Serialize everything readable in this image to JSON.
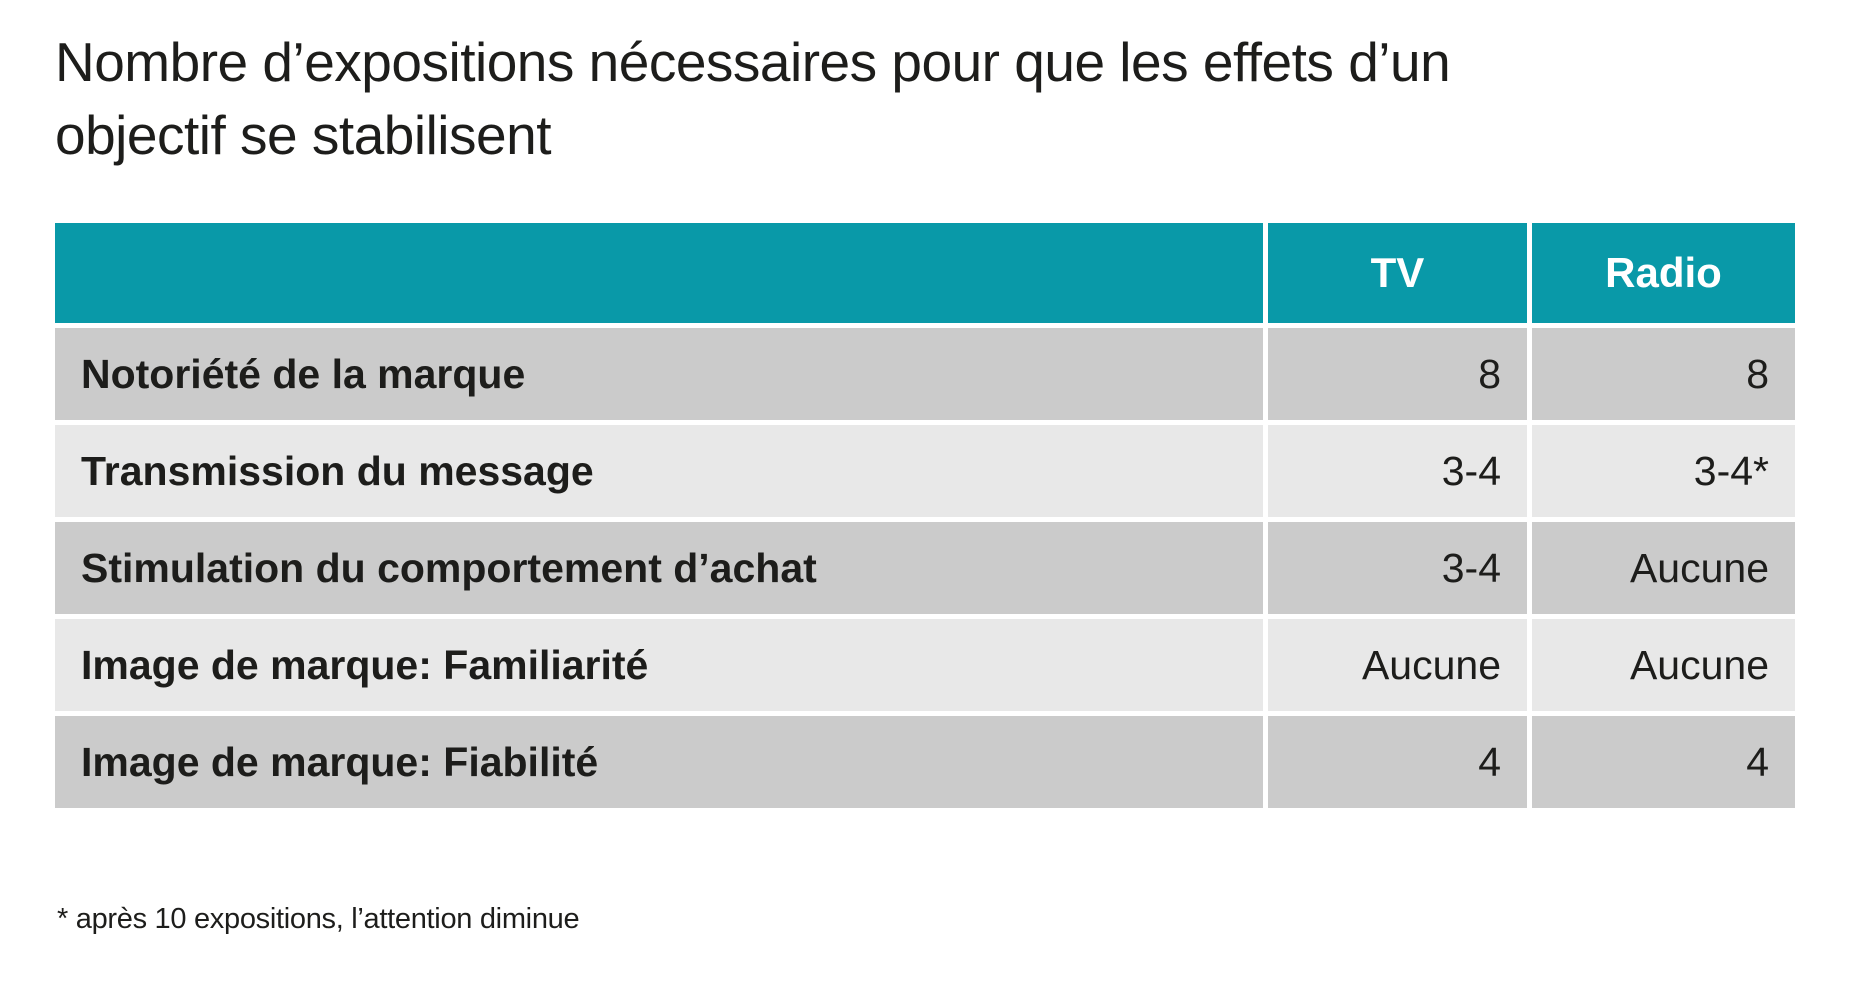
{
  "header": {
    "title_line1": "Nombre d’expositions nécessaires pour que les effets d’un",
    "title_line2": "objectif se stabilisent"
  },
  "footnote": "* après 10 expositions, l’attention diminue",
  "colors": {
    "header_bg": "#0999a8",
    "header_text": "#ffffff",
    "row_dark": "#cbcbcb",
    "row_light": "#e8e8e8",
    "text": "#1d1d1b"
  },
  "chart_data": {
    "type": "table",
    "title": "Nombre d’expositions nécessaires pour que les effets d’un objectif se stabilisent",
    "columns": [
      "",
      "TV",
      "Radio"
    ],
    "rows": [
      [
        "Notoriété de la marque",
        "8",
        "8"
      ],
      [
        "Transmission du message",
        "3-4",
        "3-4*"
      ],
      [
        "Stimulation du comportement d’achat",
        "3-4",
        "Aucune"
      ],
      [
        "Image de marque: Familiarité",
        "Aucune",
        "Aucune"
      ],
      [
        "Image de marque: Fiabilité",
        "4",
        "4"
      ]
    ],
    "footnote": "* après 10 expositions, l’attention diminue",
    "legend_position": "none",
    "grid": false
  }
}
